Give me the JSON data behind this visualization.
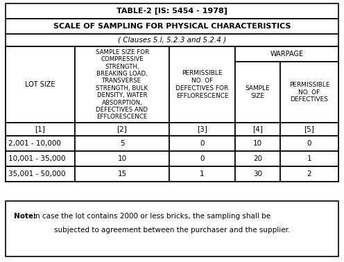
{
  "title1": "TABLE-2 [IS: 5454 - 1978]",
  "title2": "SCALE OF SAMPLING FOR PHYSICAL CHARACTERISTICS",
  "subtitle": "( Clauses 5.l, 5.2.3 and 5.2.4 )",
  "col1_header": "LOT SIZE",
  "col2_header": "SAMPLE SIZE FOR\nCOMPRESSIVE\nSTRENGTH,\nBREAKING LOAD,\nTRANSVERSE\nSTRENGTH, BULK\nDENSITY, WATER\nABSORPTION,\nDEFECTIVES AND\nEFFLORESCENCE",
  "col3_header": "PERMISSIBLE\nNO. OF\nDEFECTIVES FOR\nEFFLORESCENCE",
  "warpage_header": "WARPAGE",
  "col4_header": "SAMPLE\nSIZE",
  "col5_header": "PERMISSIBLE\nNO. OF\nDEFECTIVES",
  "row_labels": [
    "[1]",
    "[2]",
    "[3]",
    "[4]",
    "[5]"
  ],
  "data_rows": [
    [
      "2,001 - 10,000",
      "5",
      "0",
      "10",
      "0"
    ],
    [
      "10,001 - 35,000",
      "10",
      "0",
      "20",
      "1"
    ],
    [
      "35,001 - 50,000",
      "15",
      "1",
      "30",
      "2"
    ]
  ],
  "note_bold": "Note:",
  "note_rest": " In case the lot contains 2000 or less bricks, the sampling shall be\nsubjected to agreement between the purchaser and the supplier.",
  "bg_color": "#ffffff",
  "border_color": "#000000",
  "text_color": "#000000",
  "figsize": [
    4.96,
    3.78
  ],
  "dpi": 100
}
